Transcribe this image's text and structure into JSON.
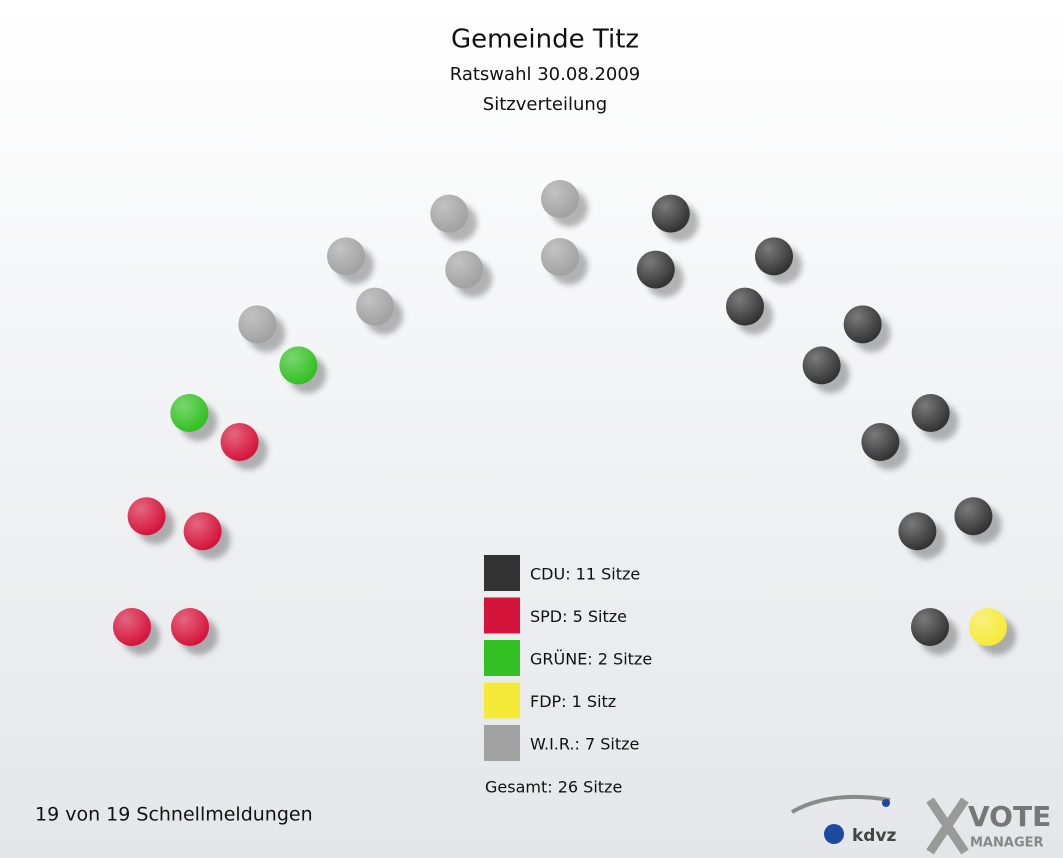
{
  "chart_data": {
    "type": "parliament",
    "title": "Gemeinde Titz",
    "subtitle": "Ratswahl 30.08.2009",
    "subtitle2": "Sitzverteilung",
    "values": [
      11,
      5,
      2,
      1,
      7
    ],
    "value_labels": [
      "CDU: 11 Sitze",
      "SPD: 5 Sitze",
      "GRÜNE: 2 Sitze",
      "FDP: 1 Sitz",
      "W.I.R.: 7 Sitze"
    ],
    "colors": [
      "#333333",
      "#d5143b",
      "#33c022",
      "#f6ea38",
      "#a2a2a2"
    ],
    "total": 26,
    "total_label": "Gesamt: 26 Sitze"
  },
  "footer": "19 von 19 Schnellmeldungen",
  "logo": {
    "brand": "kdvz",
    "product": "VOTE",
    "product2": "MANAGER"
  }
}
